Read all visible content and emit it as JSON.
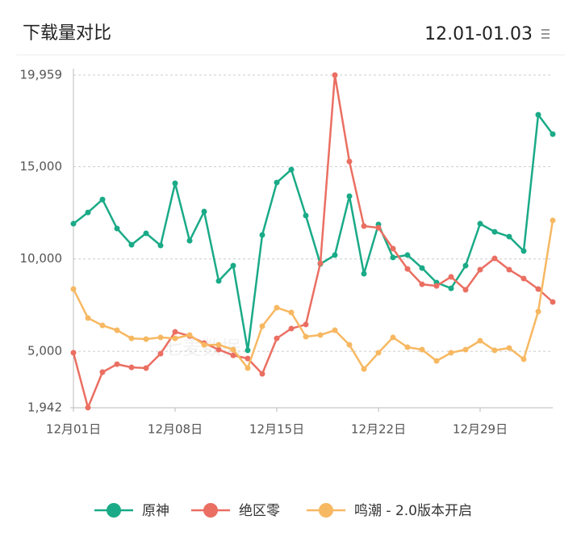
{
  "chart_data": {
    "type": "line",
    "title": "下载量对比",
    "date_range": "12.01-01.03",
    "watermark": "七麦数据",
    "categories": [
      "12月01日",
      null,
      null,
      null,
      null,
      null,
      null,
      "12月08日",
      null,
      null,
      null,
      null,
      null,
      null,
      "12月15日",
      null,
      null,
      null,
      null,
      null,
      null,
      "12月22日",
      null,
      null,
      null,
      null,
      null,
      null,
      "12月29日",
      null,
      null,
      null,
      null,
      null
    ],
    "ylim": [
      1942,
      19959
    ],
    "yticks": [
      {
        "value": 1942,
        "label": "1,942"
      },
      {
        "value": 5000,
        "label": "5,000"
      },
      {
        "value": 10000,
        "label": "10,000"
      },
      {
        "value": 15000,
        "label": "15,000"
      },
      {
        "value": 19959,
        "label": "19,959"
      }
    ],
    "grid": true,
    "series": [
      {
        "name": "原神",
        "color": "#1aaa87",
        "values": [
          11910,
          12520,
          13220,
          11650,
          10770,
          11390,
          10730,
          14100,
          10990,
          12570,
          8810,
          9640,
          5050,
          11300,
          14140,
          14840,
          12350,
          9730,
          10210,
          13400,
          9200,
          11870,
          10080,
          10210,
          9510,
          8720,
          8410,
          9640,
          11910,
          11470,
          11210,
          10430,
          17810,
          16760
        ]
      },
      {
        "name": "绝区零",
        "color": "#ea6f62",
        "values": [
          4920,
          1950,
          3870,
          4300,
          4130,
          4090,
          4870,
          6050,
          5830,
          5440,
          5090,
          4780,
          4610,
          3780,
          5700,
          6230,
          6450,
          9770,
          19959,
          15280,
          11780,
          11690,
          10560,
          9460,
          8630,
          8540,
          9030,
          8330,
          9420,
          10030,
          9420,
          8940,
          8370,
          7670
        ]
      },
      {
        "name": "鸣潮 - 2.0版本开启",
        "color": "#f7b862",
        "values": [
          8370,
          6800,
          6400,
          6140,
          5700,
          5660,
          5750,
          5700,
          5880,
          5350,
          5350,
          5090,
          4090,
          6360,
          7360,
          7100,
          5790,
          5880,
          6140,
          5350,
          4040,
          4920,
          5750,
          5220,
          5090,
          4480,
          4920,
          5090,
          5570,
          5050,
          5180,
          4570,
          7150,
          12090
        ]
      }
    ]
  }
}
